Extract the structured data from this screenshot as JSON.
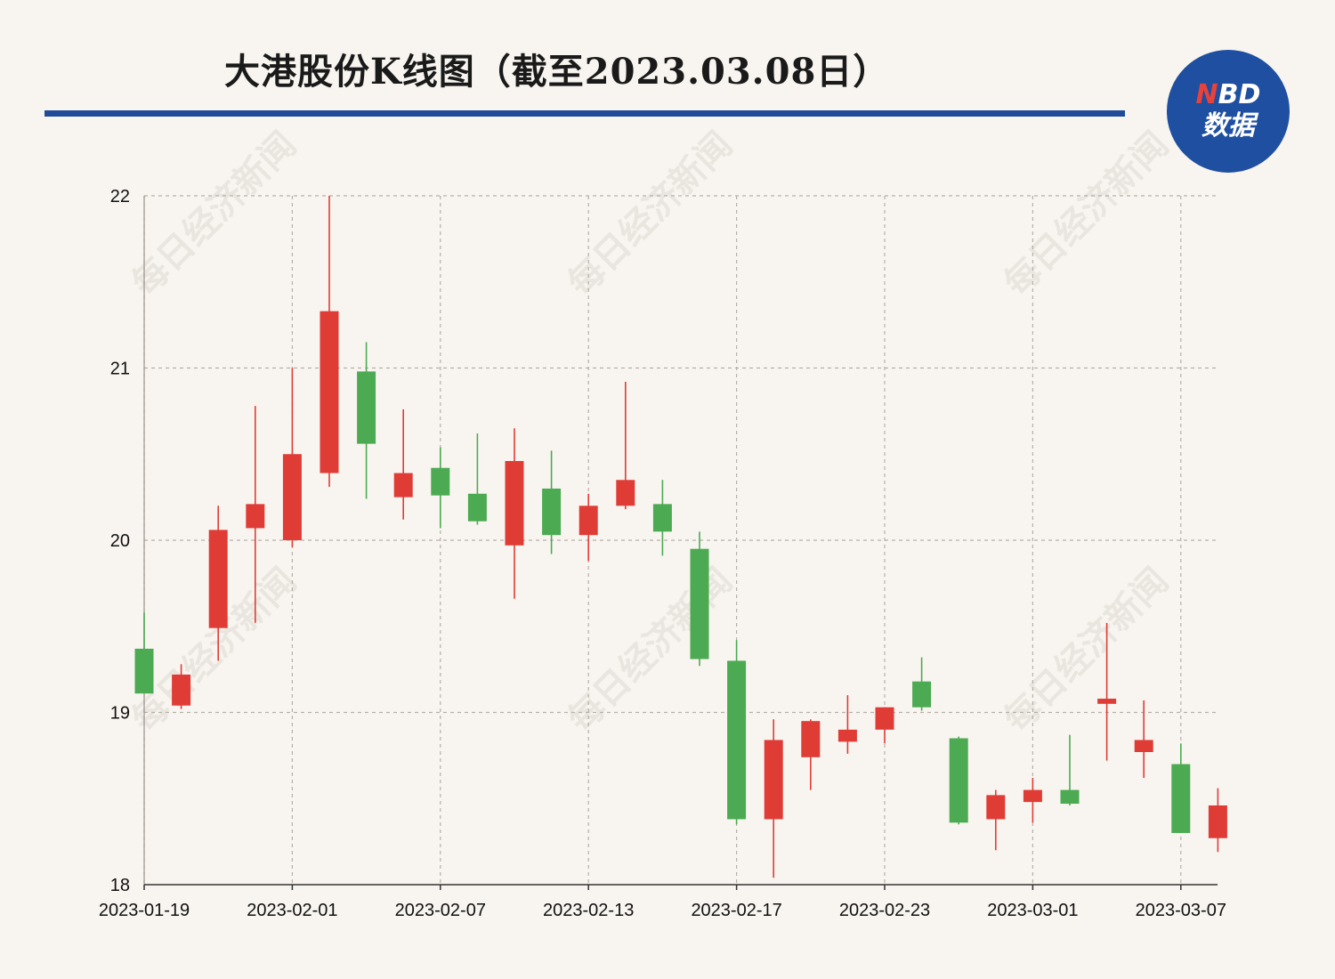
{
  "title": "大港股份K线图（截至2023.03.08日）",
  "logo": {
    "line1_n": "N",
    "line1_rest": "BD",
    "line2": "数据"
  },
  "watermark": "每日经济新闻",
  "colors": {
    "up": "#e03c36",
    "down": "#4caa52",
    "rule": "#1f4b99",
    "logo_bg": "#1f4fa0",
    "background": "#f8f5f0"
  },
  "chart_data": {
    "type": "candlestick",
    "title": "大港股份K线图（截至2023.03.08日）",
    "ylim": [
      18,
      22
    ],
    "yticks": [
      18,
      19,
      20,
      21,
      22
    ],
    "xtick_labels": [
      "2023-01-19",
      "2023-02-01",
      "2023-02-07",
      "2023-02-13",
      "2023-02-17",
      "2023-02-23",
      "2023-03-01",
      "2023-03-07"
    ],
    "xtick_index": [
      0,
      4,
      8,
      12,
      16,
      20,
      24,
      28
    ],
    "grid": true,
    "candles": [
      {
        "open": 19.37,
        "close": 19.11,
        "high": 19.58,
        "low": 19.11
      },
      {
        "open": 19.04,
        "close": 19.22,
        "high": 19.28,
        "low": 19.02
      },
      {
        "open": 19.49,
        "close": 20.06,
        "high": 20.2,
        "low": 19.3
      },
      {
        "open": 20.07,
        "close": 20.21,
        "high": 20.78,
        "low": 19.52
      },
      {
        "open": 20.0,
        "close": 20.5,
        "high": 21.0,
        "low": 19.96
      },
      {
        "open": 20.39,
        "close": 21.33,
        "high": 22.0,
        "low": 20.31
      },
      {
        "open": 20.98,
        "close": 20.56,
        "high": 21.15,
        "low": 20.24
      },
      {
        "open": 20.25,
        "close": 20.39,
        "high": 20.76,
        "low": 20.12
      },
      {
        "open": 20.42,
        "close": 20.26,
        "high": 20.54,
        "low": 20.07
      },
      {
        "open": 20.27,
        "close": 20.11,
        "high": 20.62,
        "low": 20.09
      },
      {
        "open": 19.97,
        "close": 20.46,
        "high": 20.65,
        "low": 19.66
      },
      {
        "open": 20.3,
        "close": 20.03,
        "high": 20.52,
        "low": 19.92
      },
      {
        "open": 20.03,
        "close": 20.2,
        "high": 20.27,
        "low": 19.88
      },
      {
        "open": 20.2,
        "close": 20.35,
        "high": 20.92,
        "low": 20.18
      },
      {
        "open": 20.21,
        "close": 20.05,
        "high": 20.35,
        "low": 19.91
      },
      {
        "open": 19.95,
        "close": 19.31,
        "high": 20.05,
        "low": 19.27
      },
      {
        "open": 19.3,
        "close": 18.38,
        "high": 19.42,
        "low": 18.35
      },
      {
        "open": 18.38,
        "close": 18.84,
        "high": 18.96,
        "low": 18.04
      },
      {
        "open": 18.74,
        "close": 18.95,
        "high": 18.96,
        "low": 18.55
      },
      {
        "open": 18.83,
        "close": 18.9,
        "high": 19.1,
        "low": 18.76
      },
      {
        "open": 18.9,
        "close": 19.03,
        "high": 19.03,
        "low": 18.82
      },
      {
        "open": 19.18,
        "close": 19.03,
        "high": 19.32,
        "low": 19.01
      },
      {
        "open": 18.85,
        "close": 18.36,
        "high": 18.86,
        "low": 18.35
      },
      {
        "open": 18.38,
        "close": 18.52,
        "high": 18.55,
        "low": 18.2
      },
      {
        "open": 18.48,
        "close": 18.55,
        "high": 18.62,
        "low": 18.36
      },
      {
        "open": 18.55,
        "close": 18.47,
        "high": 18.87,
        "low": 18.46
      },
      {
        "open": 19.05,
        "close": 19.08,
        "high": 19.52,
        "low": 18.72
      },
      {
        "open": 18.77,
        "close": 18.84,
        "high": 19.07,
        "low": 18.62
      },
      {
        "open": 18.7,
        "close": 18.3,
        "high": 18.82,
        "low": 18.3
      },
      {
        "open": 18.27,
        "close": 18.46,
        "high": 18.56,
        "low": 18.19
      }
    ]
  }
}
